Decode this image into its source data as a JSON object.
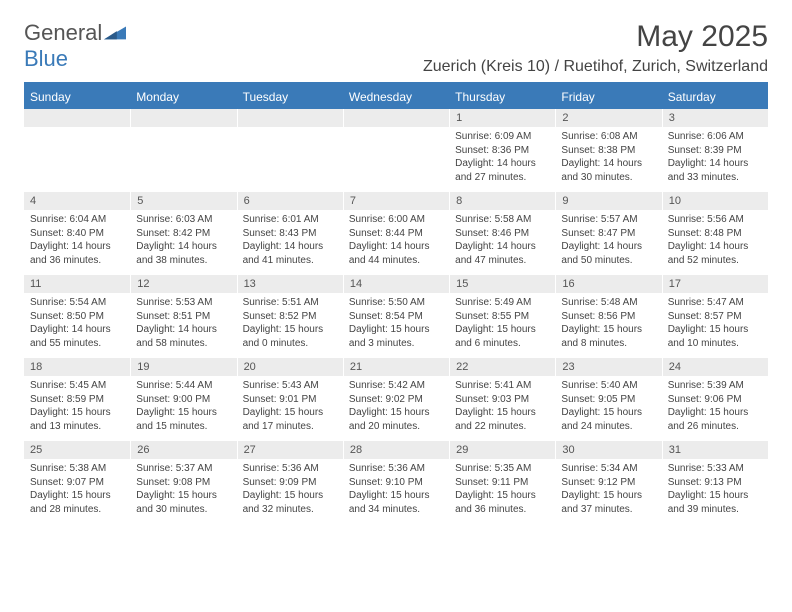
{
  "brand": {
    "text1": "General",
    "text2": "Blue"
  },
  "title": "May 2025",
  "location": "Zuerich (Kreis 10) / Ruetihof, Zurich, Switzerland",
  "colors": {
    "accent": "#3a7ab8",
    "header_text": "#ffffff",
    "daynum_bg": "#ececec",
    "body_text": "#444444",
    "background": "#ffffff"
  },
  "day_labels": [
    "Sunday",
    "Monday",
    "Tuesday",
    "Wednesday",
    "Thursday",
    "Friday",
    "Saturday"
  ],
  "typography": {
    "title_fontsize": 30,
    "location_fontsize": 16,
    "header_fontsize": 12,
    "body_fontsize": 10
  },
  "weeks": [
    [
      {
        "n": "",
        "sr": "",
        "ss": "",
        "dl": ""
      },
      {
        "n": "",
        "sr": "",
        "ss": "",
        "dl": ""
      },
      {
        "n": "",
        "sr": "",
        "ss": "",
        "dl": ""
      },
      {
        "n": "",
        "sr": "",
        "ss": "",
        "dl": ""
      },
      {
        "n": "1",
        "sr": "Sunrise: 6:09 AM",
        "ss": "Sunset: 8:36 PM",
        "dl": "Daylight: 14 hours and 27 minutes."
      },
      {
        "n": "2",
        "sr": "Sunrise: 6:08 AM",
        "ss": "Sunset: 8:38 PM",
        "dl": "Daylight: 14 hours and 30 minutes."
      },
      {
        "n": "3",
        "sr": "Sunrise: 6:06 AM",
        "ss": "Sunset: 8:39 PM",
        "dl": "Daylight: 14 hours and 33 minutes."
      }
    ],
    [
      {
        "n": "4",
        "sr": "Sunrise: 6:04 AM",
        "ss": "Sunset: 8:40 PM",
        "dl": "Daylight: 14 hours and 36 minutes."
      },
      {
        "n": "5",
        "sr": "Sunrise: 6:03 AM",
        "ss": "Sunset: 8:42 PM",
        "dl": "Daylight: 14 hours and 38 minutes."
      },
      {
        "n": "6",
        "sr": "Sunrise: 6:01 AM",
        "ss": "Sunset: 8:43 PM",
        "dl": "Daylight: 14 hours and 41 minutes."
      },
      {
        "n": "7",
        "sr": "Sunrise: 6:00 AM",
        "ss": "Sunset: 8:44 PM",
        "dl": "Daylight: 14 hours and 44 minutes."
      },
      {
        "n": "8",
        "sr": "Sunrise: 5:58 AM",
        "ss": "Sunset: 8:46 PM",
        "dl": "Daylight: 14 hours and 47 minutes."
      },
      {
        "n": "9",
        "sr": "Sunrise: 5:57 AM",
        "ss": "Sunset: 8:47 PM",
        "dl": "Daylight: 14 hours and 50 minutes."
      },
      {
        "n": "10",
        "sr": "Sunrise: 5:56 AM",
        "ss": "Sunset: 8:48 PM",
        "dl": "Daylight: 14 hours and 52 minutes."
      }
    ],
    [
      {
        "n": "11",
        "sr": "Sunrise: 5:54 AM",
        "ss": "Sunset: 8:50 PM",
        "dl": "Daylight: 14 hours and 55 minutes."
      },
      {
        "n": "12",
        "sr": "Sunrise: 5:53 AM",
        "ss": "Sunset: 8:51 PM",
        "dl": "Daylight: 14 hours and 58 minutes."
      },
      {
        "n": "13",
        "sr": "Sunrise: 5:51 AM",
        "ss": "Sunset: 8:52 PM",
        "dl": "Daylight: 15 hours and 0 minutes."
      },
      {
        "n": "14",
        "sr": "Sunrise: 5:50 AM",
        "ss": "Sunset: 8:54 PM",
        "dl": "Daylight: 15 hours and 3 minutes."
      },
      {
        "n": "15",
        "sr": "Sunrise: 5:49 AM",
        "ss": "Sunset: 8:55 PM",
        "dl": "Daylight: 15 hours and 6 minutes."
      },
      {
        "n": "16",
        "sr": "Sunrise: 5:48 AM",
        "ss": "Sunset: 8:56 PM",
        "dl": "Daylight: 15 hours and 8 minutes."
      },
      {
        "n": "17",
        "sr": "Sunrise: 5:47 AM",
        "ss": "Sunset: 8:57 PM",
        "dl": "Daylight: 15 hours and 10 minutes."
      }
    ],
    [
      {
        "n": "18",
        "sr": "Sunrise: 5:45 AM",
        "ss": "Sunset: 8:59 PM",
        "dl": "Daylight: 15 hours and 13 minutes."
      },
      {
        "n": "19",
        "sr": "Sunrise: 5:44 AM",
        "ss": "Sunset: 9:00 PM",
        "dl": "Daylight: 15 hours and 15 minutes."
      },
      {
        "n": "20",
        "sr": "Sunrise: 5:43 AM",
        "ss": "Sunset: 9:01 PM",
        "dl": "Daylight: 15 hours and 17 minutes."
      },
      {
        "n": "21",
        "sr": "Sunrise: 5:42 AM",
        "ss": "Sunset: 9:02 PM",
        "dl": "Daylight: 15 hours and 20 minutes."
      },
      {
        "n": "22",
        "sr": "Sunrise: 5:41 AM",
        "ss": "Sunset: 9:03 PM",
        "dl": "Daylight: 15 hours and 22 minutes."
      },
      {
        "n": "23",
        "sr": "Sunrise: 5:40 AM",
        "ss": "Sunset: 9:05 PM",
        "dl": "Daylight: 15 hours and 24 minutes."
      },
      {
        "n": "24",
        "sr": "Sunrise: 5:39 AM",
        "ss": "Sunset: 9:06 PM",
        "dl": "Daylight: 15 hours and 26 minutes."
      }
    ],
    [
      {
        "n": "25",
        "sr": "Sunrise: 5:38 AM",
        "ss": "Sunset: 9:07 PM",
        "dl": "Daylight: 15 hours and 28 minutes."
      },
      {
        "n": "26",
        "sr": "Sunrise: 5:37 AM",
        "ss": "Sunset: 9:08 PM",
        "dl": "Daylight: 15 hours and 30 minutes."
      },
      {
        "n": "27",
        "sr": "Sunrise: 5:36 AM",
        "ss": "Sunset: 9:09 PM",
        "dl": "Daylight: 15 hours and 32 minutes."
      },
      {
        "n": "28",
        "sr": "Sunrise: 5:36 AM",
        "ss": "Sunset: 9:10 PM",
        "dl": "Daylight: 15 hours and 34 minutes."
      },
      {
        "n": "29",
        "sr": "Sunrise: 5:35 AM",
        "ss": "Sunset: 9:11 PM",
        "dl": "Daylight: 15 hours and 36 minutes."
      },
      {
        "n": "30",
        "sr": "Sunrise: 5:34 AM",
        "ss": "Sunset: 9:12 PM",
        "dl": "Daylight: 15 hours and 37 minutes."
      },
      {
        "n": "31",
        "sr": "Sunrise: 5:33 AM",
        "ss": "Sunset: 9:13 PM",
        "dl": "Daylight: 15 hours and 39 minutes."
      }
    ]
  ]
}
